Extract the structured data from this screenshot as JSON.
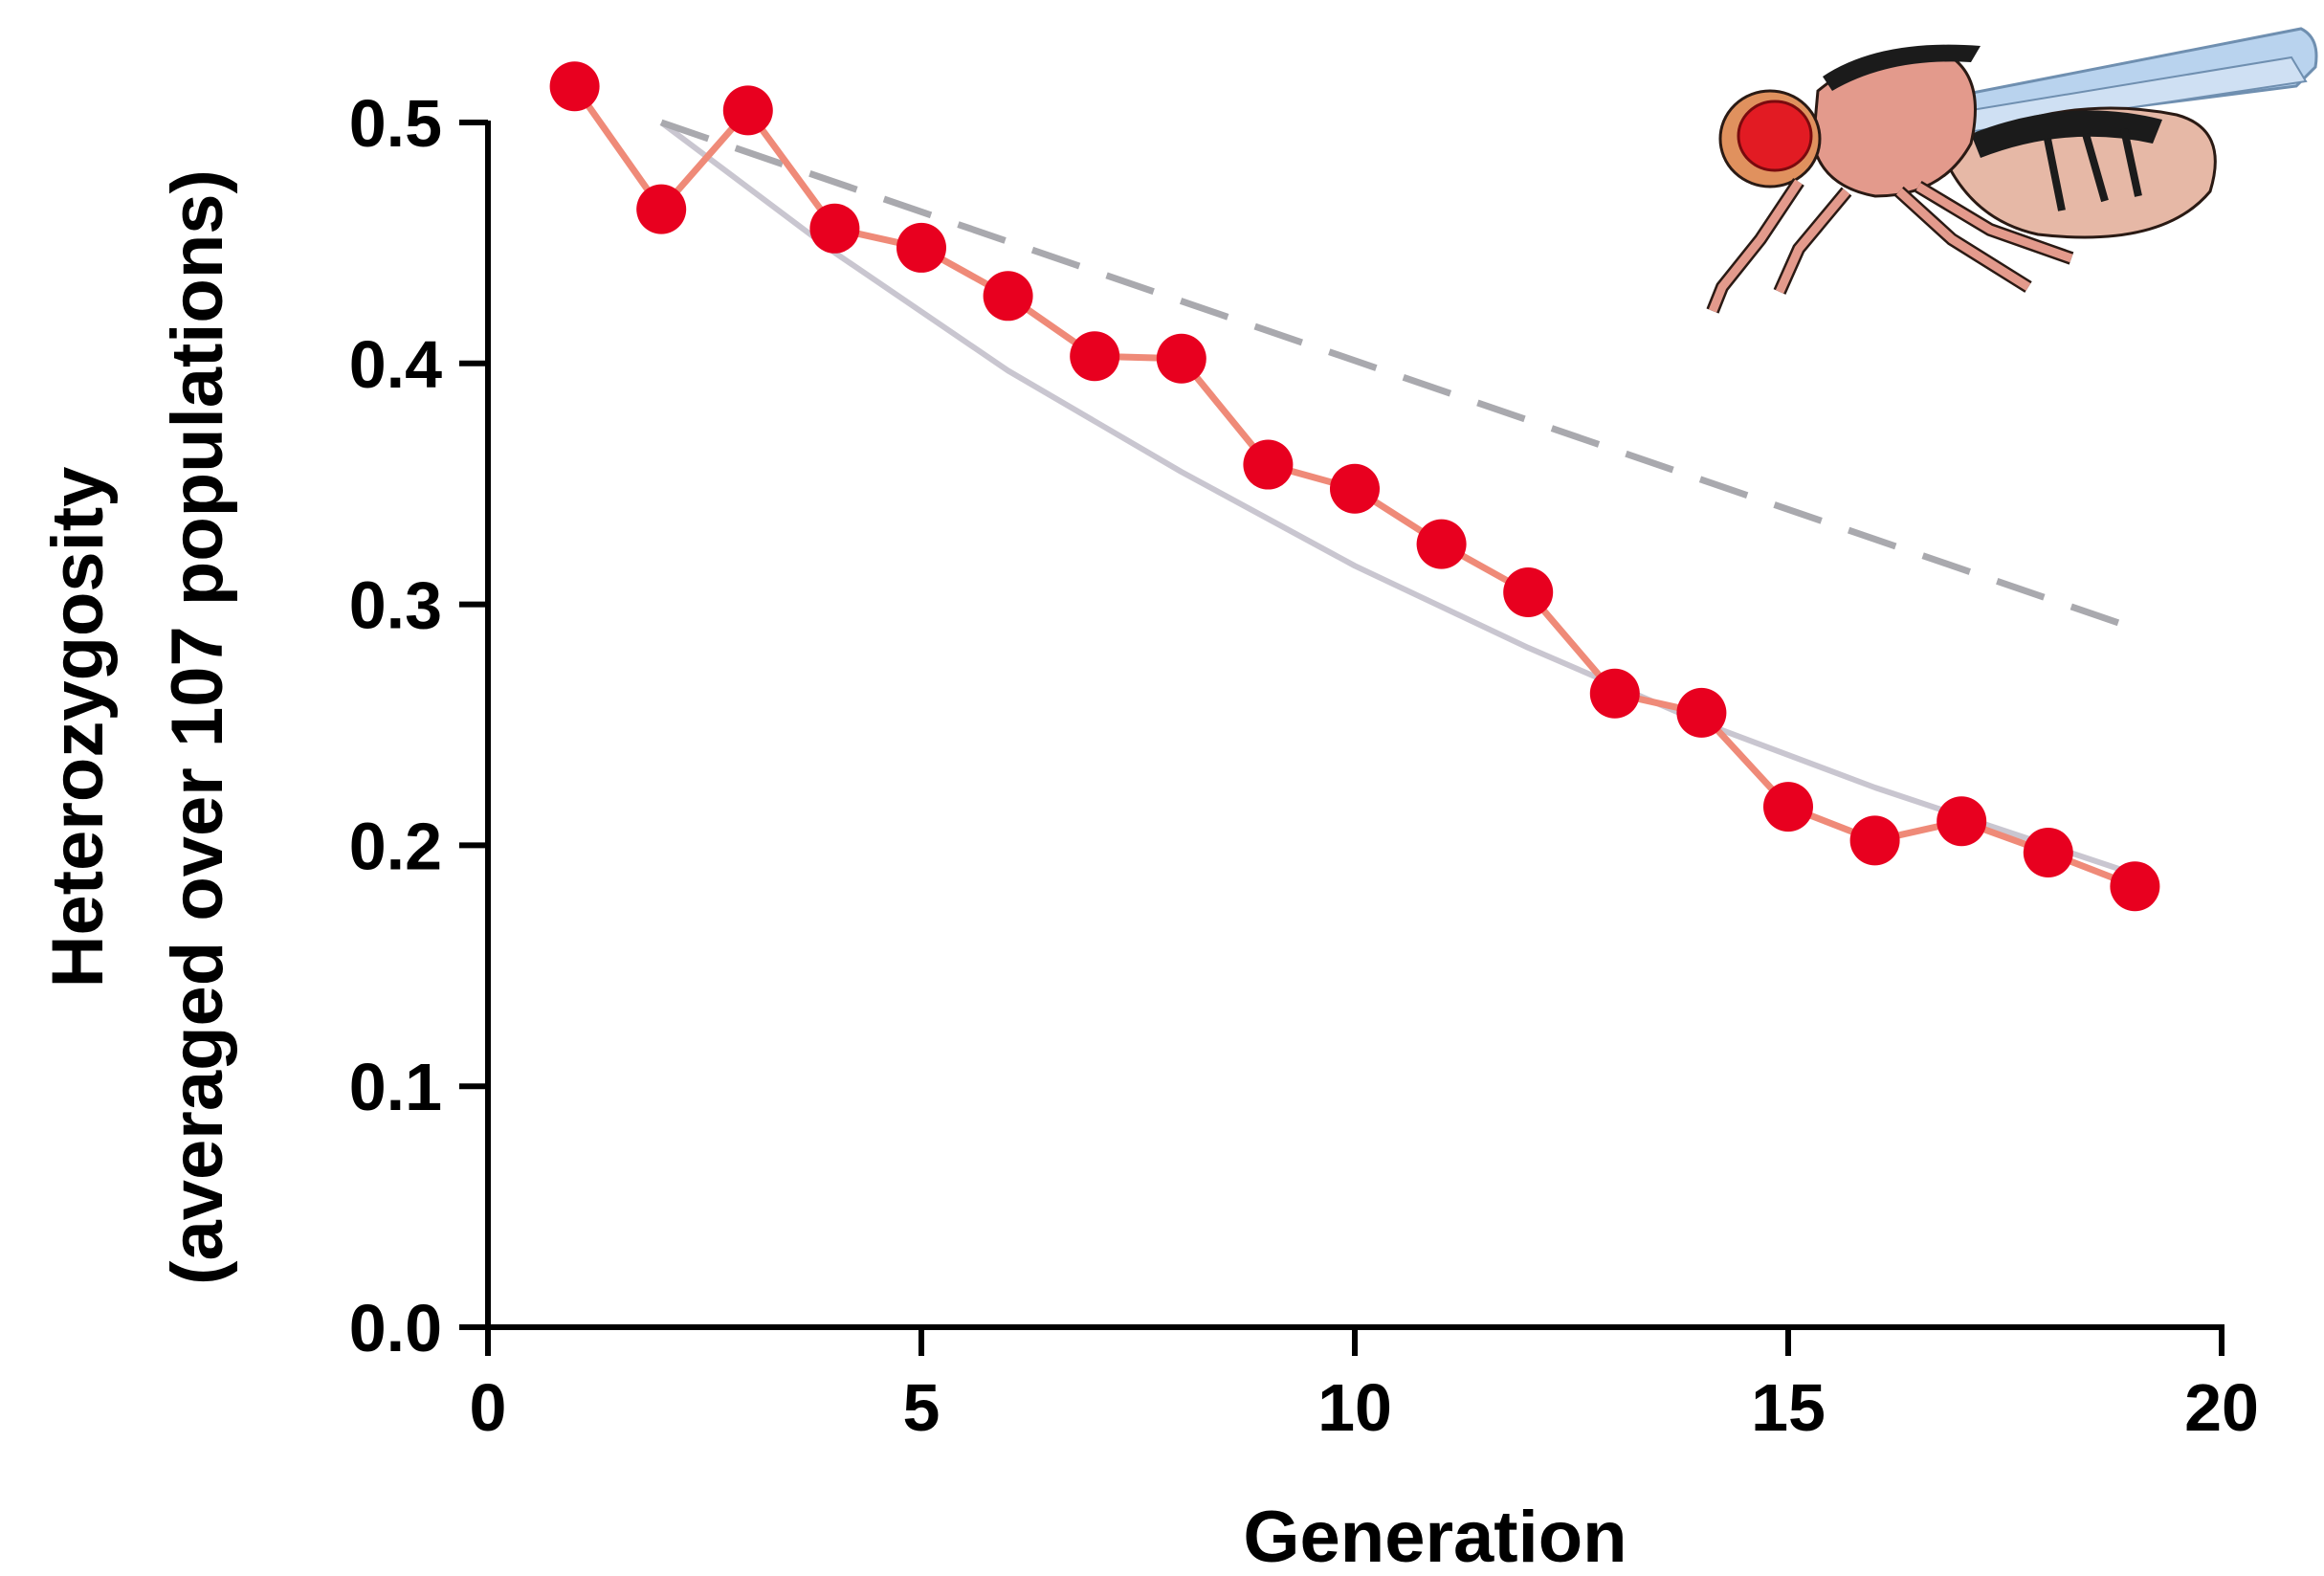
{
  "chart_data": {
    "type": "line",
    "xlabel": "Generation",
    "ylabel_line1": "Heterozygosity",
    "ylabel_line2": "(averaged over 107 populations)",
    "xlim": [
      0,
      20
    ],
    "ylim": [
      0.0,
      0.5
    ],
    "xticks": [
      0,
      5,
      10,
      15,
      20
    ],
    "xtick_labels": [
      "0",
      "5",
      "10",
      "15",
      "20"
    ],
    "yticks": [
      0.0,
      0.1,
      0.2,
      0.3,
      0.4,
      0.5
    ],
    "ytick_labels": [
      "0.0",
      "0.1",
      "0.2",
      "0.3",
      "0.4",
      "0.5"
    ],
    "grid": false,
    "legend": "none",
    "series": [
      {
        "style": "line-with-markers",
        "color": "#e8001f",
        "line_color": "#ef8a78",
        "x": [
          1,
          2,
          3,
          4,
          5,
          6,
          7,
          8,
          9,
          10,
          11,
          12,
          13,
          14,
          15,
          16,
          17,
          18,
          19
        ],
        "y": [
          0.515,
          0.464,
          0.505,
          0.456,
          0.448,
          0.428,
          0.403,
          0.402,
          0.358,
          0.348,
          0.325,
          0.305,
          0.263,
          0.255,
          0.216,
          0.202,
          0.21,
          0.197,
          0.183
        ]
      },
      {
        "style": "dashed",
        "color": "#a9a9ae",
        "x": [
          2,
          19
        ],
        "y": [
          0.5,
          0.29
        ]
      },
      {
        "style": "solid",
        "color": "#c9c6d0",
        "x": [
          2,
          4,
          6,
          8,
          10,
          12,
          14,
          16,
          19
        ],
        "y": [
          0.5,
          0.446,
          0.397,
          0.355,
          0.316,
          0.282,
          0.251,
          0.224,
          0.188
        ]
      }
    ],
    "illustration": "fruit-fly"
  }
}
